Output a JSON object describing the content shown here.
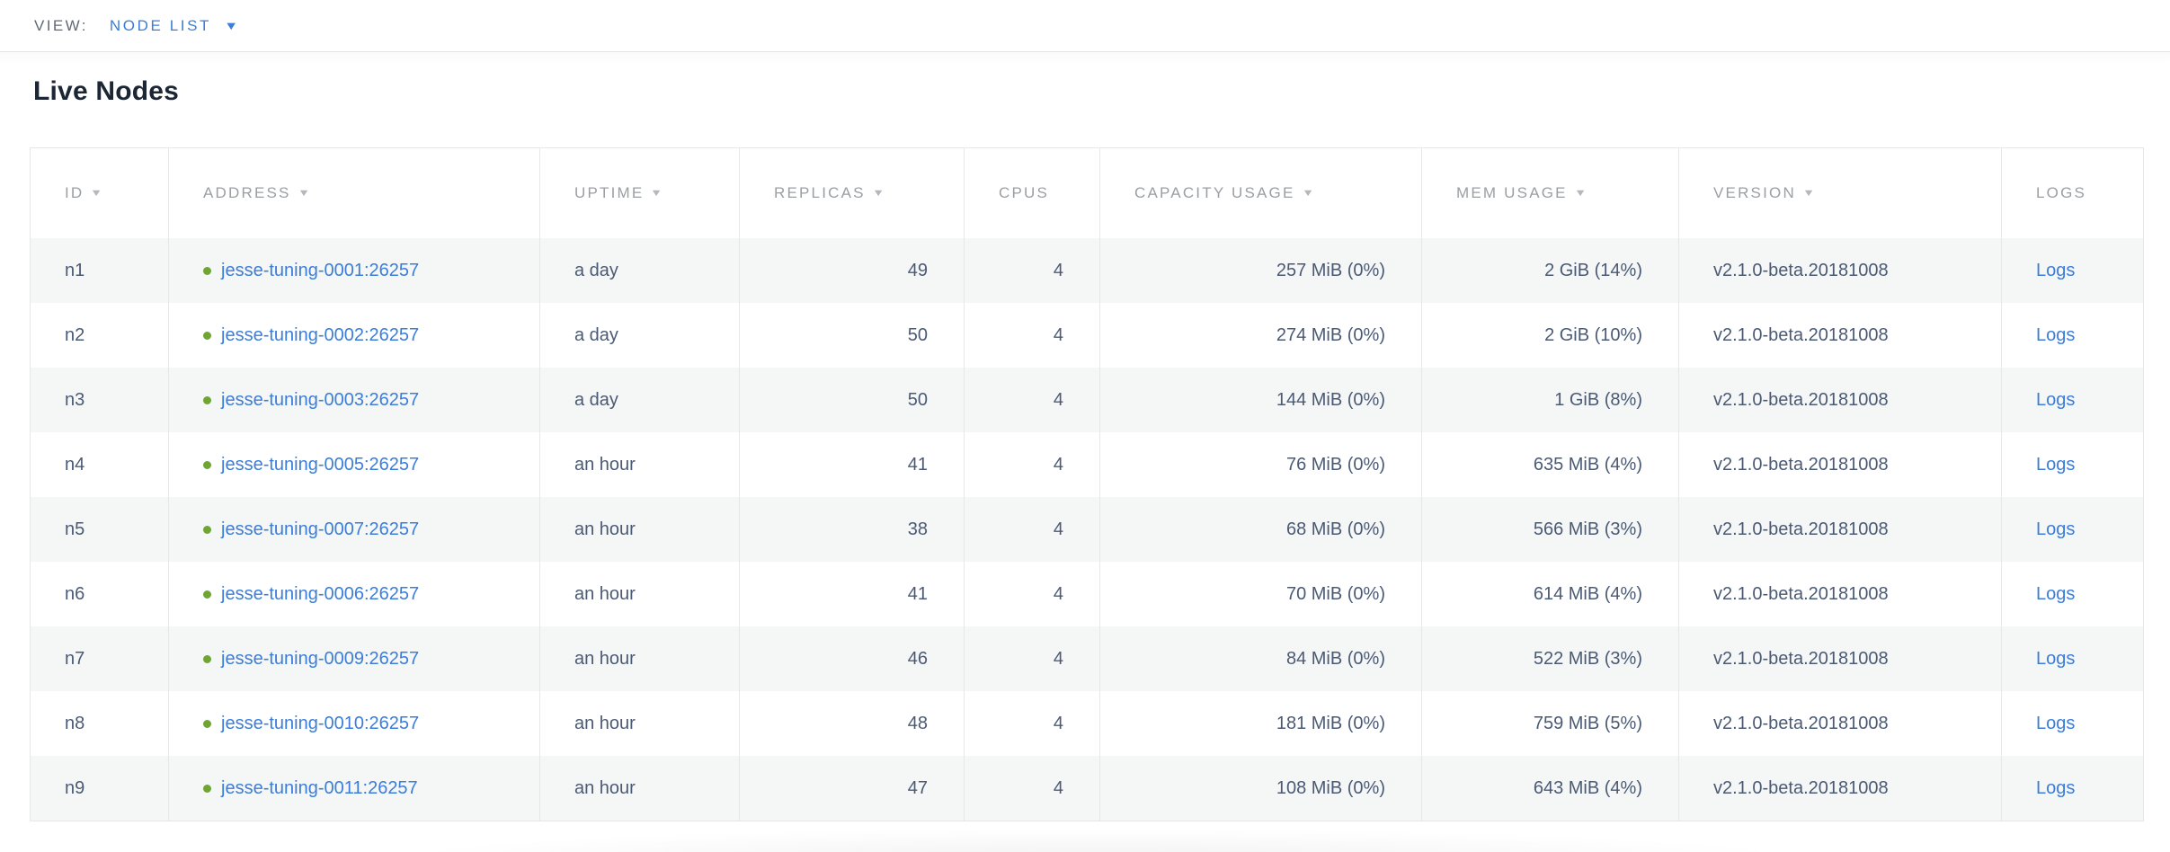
{
  "view_bar": {
    "label": "VIEW:",
    "selected": "NODE LIST"
  },
  "page": {
    "title": "Live Nodes"
  },
  "icons": {
    "view_caret": "▼",
    "sort_desc": "▼"
  },
  "colors": {
    "link_blue": "#3b7dd8",
    "live_green": "#70a533",
    "header_gray": "#9b9ea3",
    "cell_text": "#4b5a74",
    "row_stripe": "#f5f6f6",
    "border": "#e7e7e7"
  },
  "table": {
    "columns": [
      {
        "key": "id",
        "label": "ID",
        "sortable": true,
        "align": "left",
        "type": "text"
      },
      {
        "key": "address",
        "label": "ADDRESS",
        "sortable": true,
        "align": "left",
        "type": "status_link"
      },
      {
        "key": "uptime",
        "label": "UPTIME",
        "sortable": true,
        "align": "left",
        "type": "text"
      },
      {
        "key": "replicas",
        "label": "REPLICAS",
        "sortable": true,
        "align": "right",
        "type": "text"
      },
      {
        "key": "cpus",
        "label": "CPUS",
        "sortable": false,
        "align": "right",
        "type": "text"
      },
      {
        "key": "capacity_usage",
        "label": "CAPACITY USAGE",
        "sortable": true,
        "align": "right",
        "type": "text"
      },
      {
        "key": "mem_usage",
        "label": "MEM USAGE",
        "sortable": true,
        "align": "right",
        "type": "text"
      },
      {
        "key": "version",
        "label": "VERSION",
        "sortable": true,
        "align": "left",
        "type": "text"
      },
      {
        "key": "logs",
        "label": "LOGS",
        "sortable": false,
        "align": "left",
        "type": "link"
      }
    ],
    "rows": [
      {
        "id": "n1",
        "status": "live",
        "address": "jesse-tuning-0001:26257",
        "uptime": "a day",
        "replicas": "49",
        "cpus": "4",
        "capacity_usage": "257 MiB (0%)",
        "mem_usage": "2 GiB (14%)",
        "version": "v2.1.0-beta.20181008",
        "logs": "Logs"
      },
      {
        "id": "n2",
        "status": "live",
        "address": "jesse-tuning-0002:26257",
        "uptime": "a day",
        "replicas": "50",
        "cpus": "4",
        "capacity_usage": "274 MiB (0%)",
        "mem_usage": "2 GiB (10%)",
        "version": "v2.1.0-beta.20181008",
        "logs": "Logs"
      },
      {
        "id": "n3",
        "status": "live",
        "address": "jesse-tuning-0003:26257",
        "uptime": "a day",
        "replicas": "50",
        "cpus": "4",
        "capacity_usage": "144 MiB (0%)",
        "mem_usage": "1 GiB (8%)",
        "version": "v2.1.0-beta.20181008",
        "logs": "Logs"
      },
      {
        "id": "n4",
        "status": "live",
        "address": "jesse-tuning-0005:26257",
        "uptime": "an hour",
        "replicas": "41",
        "cpus": "4",
        "capacity_usage": "76 MiB (0%)",
        "mem_usage": "635 MiB (4%)",
        "version": "v2.1.0-beta.20181008",
        "logs": "Logs"
      },
      {
        "id": "n5",
        "status": "live",
        "address": "jesse-tuning-0007:26257",
        "uptime": "an hour",
        "replicas": "38",
        "cpus": "4",
        "capacity_usage": "68 MiB (0%)",
        "mem_usage": "566 MiB (3%)",
        "version": "v2.1.0-beta.20181008",
        "logs": "Logs"
      },
      {
        "id": "n6",
        "status": "live",
        "address": "jesse-tuning-0006:26257",
        "uptime": "an hour",
        "replicas": "41",
        "cpus": "4",
        "capacity_usage": "70 MiB (0%)",
        "mem_usage": "614 MiB (4%)",
        "version": "v2.1.0-beta.20181008",
        "logs": "Logs"
      },
      {
        "id": "n7",
        "status": "live",
        "address": "jesse-tuning-0009:26257",
        "uptime": "an hour",
        "replicas": "46",
        "cpus": "4",
        "capacity_usage": "84 MiB (0%)",
        "mem_usage": "522 MiB (3%)",
        "version": "v2.1.0-beta.20181008",
        "logs": "Logs"
      },
      {
        "id": "n8",
        "status": "live",
        "address": "jesse-tuning-0010:26257",
        "uptime": "an hour",
        "replicas": "48",
        "cpus": "4",
        "capacity_usage": "181 MiB (0%)",
        "mem_usage": "759 MiB (5%)",
        "version": "v2.1.0-beta.20181008",
        "logs": "Logs"
      },
      {
        "id": "n9",
        "status": "live",
        "address": "jesse-tuning-0011:26257",
        "uptime": "an hour",
        "replicas": "47",
        "cpus": "4",
        "capacity_usage": "108 MiB (0%)",
        "mem_usage": "643 MiB (4%)",
        "version": "v2.1.0-beta.20181008",
        "logs": "Logs"
      }
    ]
  }
}
